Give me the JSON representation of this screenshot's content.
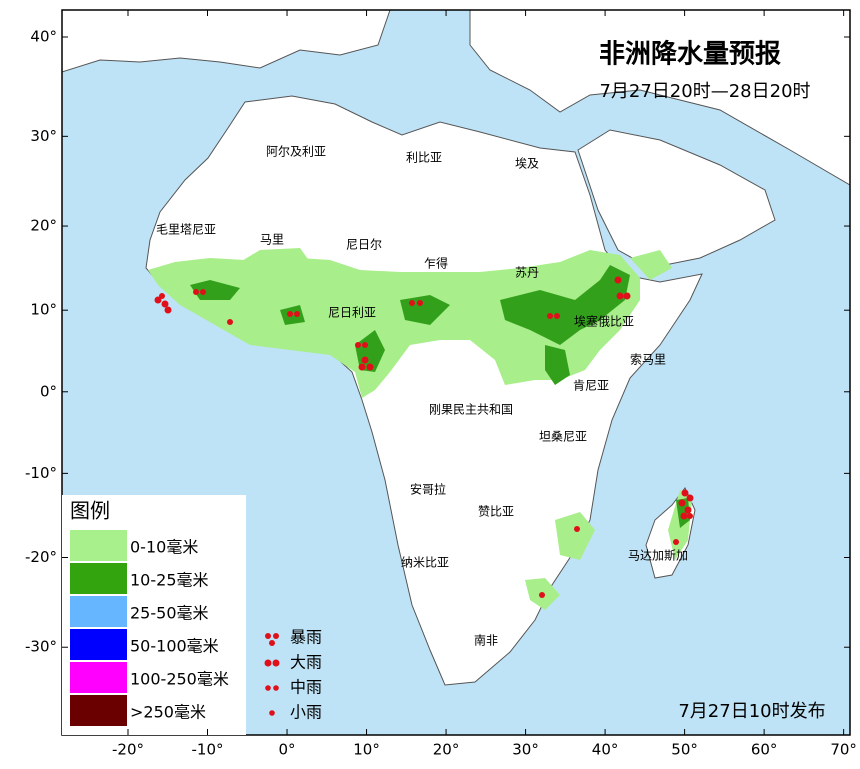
{
  "title": "非洲降水量预报",
  "subtitle": "7月27日20时—28日20时",
  "issued": "7月27日10时发布",
  "map": {
    "xlim": [
      -28.3,
      70.8
    ],
    "ylim": [
      -38.9,
      42.5
    ],
    "xticks": [
      {
        "value": -20,
        "label": "-20°"
      },
      {
        "value": -10,
        "label": "-10°"
      },
      {
        "value": 0,
        "label": "0°"
      },
      {
        "value": 10,
        "label": "10°"
      },
      {
        "value": 20,
        "label": "20°"
      },
      {
        "value": 30,
        "label": "30°"
      },
      {
        "value": 40,
        "label": "40°"
      },
      {
        "value": 50,
        "label": "50°"
      },
      {
        "value": 60,
        "label": "60°"
      },
      {
        "value": 70,
        "label": "70°"
      }
    ],
    "yticks": [
      {
        "value": 40,
        "label": "40°"
      },
      {
        "value": 30,
        "label": "30°"
      },
      {
        "value": 20,
        "label": "20°"
      },
      {
        "value": 10,
        "label": "10°"
      },
      {
        "value": 0,
        "label": "0°"
      },
      {
        "value": -10,
        "label": "-10°"
      },
      {
        "value": -20,
        "label": "-20°"
      },
      {
        "value": -30,
        "label": "-30°"
      }
    ]
  },
  "countries": [
    "阿尔及利亚",
    "利比亚",
    "埃及",
    "毛里塔尼亚",
    "马里",
    "尼日尔",
    "乍得",
    "苏丹",
    "尼日利亚",
    "埃塞俄比亚",
    "索马里",
    "肯尼亚",
    "刚果民主共和国",
    "坦桑尼亚",
    "安哥拉",
    "赞比亚",
    "马达加斯加",
    "纳米比亚",
    "南非"
  ],
  "legend": {
    "title": "图例",
    "fill": [
      {
        "label": "0-10毫米",
        "color": "#a8f08c"
      },
      {
        "label": "10-25毫米",
        "color": "#33a30e"
      },
      {
        "label": "25-50毫米",
        "color": "#66b5ff"
      },
      {
        "label": "50-100毫米",
        "color": "#0000ff"
      },
      {
        "label": "100-250毫米",
        "color": "#ff00ff"
      },
      {
        "label": ">250毫米",
        "color": "#6b0000"
      }
    ],
    "points": [
      "暴雨",
      "大雨",
      "中雨",
      "小雨"
    ]
  }
}
